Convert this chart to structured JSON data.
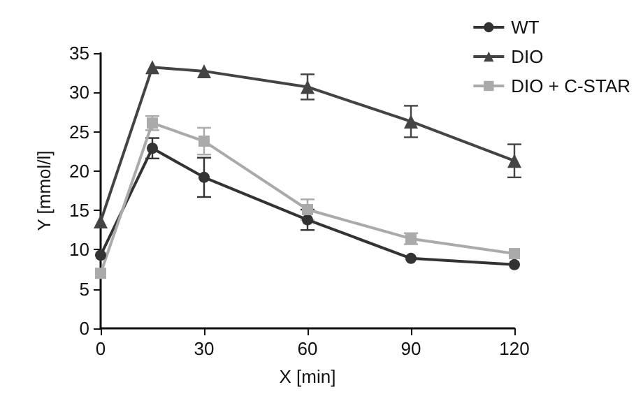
{
  "chart_data": {
    "type": "line",
    "xlabel": "X [min]",
    "ylabel": "Y [mmol/l]",
    "x": [
      0,
      15,
      30,
      60,
      90,
      120
    ],
    "series": [
      {
        "name": "WT",
        "color": "#333333",
        "marker": "circle",
        "values": [
          9.3,
          22.9,
          19.2,
          13.8,
          8.9,
          8.1
        ],
        "errors": [
          null,
          1.3,
          2.5,
          1.3,
          null,
          null
        ]
      },
      {
        "name": "DIO",
        "color": "#444444",
        "marker": "triangle",
        "values": [
          13.6,
          33.2,
          32.7,
          30.7,
          26.3,
          21.3
        ],
        "errors": [
          null,
          null,
          null,
          1.6,
          2,
          2.1
        ]
      },
      {
        "name": "DIO + C-STAR",
        "color": "#aaaaaa",
        "marker": "square",
        "values": [
          7.0,
          26.1,
          23.8,
          15.1,
          11.4,
          9.5
        ],
        "errors": [
          null,
          0.9,
          1.7,
          1.3,
          0.7,
          null
        ]
      }
    ],
    "xlim": [
      0,
      120
    ],
    "xticks": [
      0,
      30,
      60,
      90,
      120
    ],
    "ylim": [
      0,
      35
    ],
    "yticks": [
      0,
      5,
      10,
      15,
      20,
      25,
      30,
      35
    ],
    "grid": false,
    "legend": "top right",
    "line_style": "solid"
  }
}
